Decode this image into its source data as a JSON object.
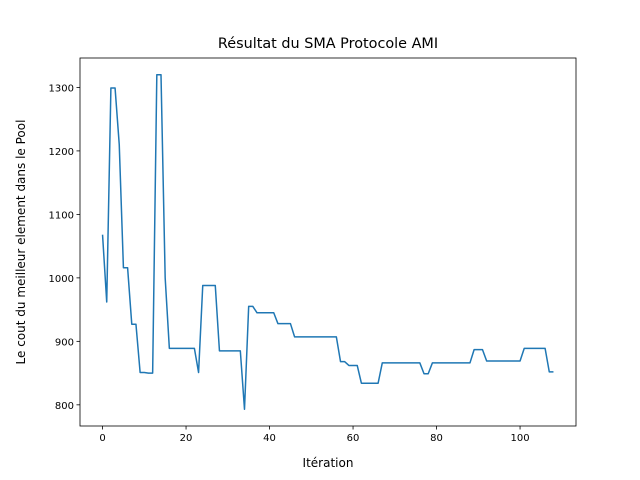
{
  "chart_data": {
    "type": "line",
    "title": "Résultat du SMA Protocole AMI",
    "x_label": "Itération",
    "y_label": "Le cout du meilleur element dans le Pool",
    "x": [
      0,
      1,
      2,
      3,
      4,
      5,
      6,
      7,
      8,
      9,
      10,
      11,
      12,
      13,
      14,
      15,
      16,
      17,
      18,
      19,
      20,
      21,
      22,
      23,
      24,
      25,
      26,
      27,
      28,
      29,
      30,
      31,
      32,
      33,
      34,
      35,
      36,
      37,
      38,
      39,
      40,
      41,
      42,
      43,
      44,
      45,
      46,
      47,
      48,
      49,
      50,
      51,
      52,
      53,
      54,
      55,
      56,
      57,
      58,
      59,
      60,
      61,
      62,
      63,
      64,
      65,
      66,
      67,
      68,
      69,
      70,
      71,
      72,
      73,
      74,
      75,
      76,
      77,
      78,
      79,
      80,
      81,
      82,
      83,
      84,
      85,
      86,
      87,
      88,
      89,
      90,
      91,
      92,
      93,
      94,
      95,
      96,
      97,
      98,
      99,
      100,
      101,
      102,
      103,
      104,
      105,
      106,
      107,
      108
    ],
    "series": [
      {
        "color": "#1f77b4",
        "values": [
          1068,
          962,
          1299,
          1299,
          1210,
          1016,
          1016,
          927,
          927,
          851,
          851,
          850,
          850,
          1320,
          1320,
          1000,
          889,
          889,
          889,
          889,
          889,
          889,
          889,
          851,
          988,
          988,
          988,
          988,
          885,
          885,
          885,
          885,
          885,
          885,
          793,
          955,
          955,
          945,
          945,
          945,
          945,
          945,
          928,
          928,
          928,
          928,
          907,
          907,
          907,
          907,
          907,
          907,
          907,
          907,
          907,
          907,
          907,
          868,
          868,
          862,
          862,
          862,
          834,
          834,
          834,
          834,
          834,
          866,
          866,
          866,
          866,
          866,
          866,
          866,
          866,
          866,
          866,
          849,
          849,
          866,
          866,
          866,
          866,
          866,
          866,
          866,
          866,
          866,
          866,
          887,
          887,
          887,
          869,
          869,
          869,
          869,
          869,
          869,
          869,
          869,
          869,
          889,
          889,
          889,
          889,
          889,
          889,
          852,
          852
        ]
      }
    ],
    "xlim": [
      -5.4,
      113.4
    ],
    "ylim": [
      766.65,
      1346.35
    ],
    "xticks": [
      0,
      20,
      40,
      60,
      80,
      100
    ],
    "yticks": [
      800,
      900,
      1000,
      1100,
      1200,
      1300
    ]
  }
}
